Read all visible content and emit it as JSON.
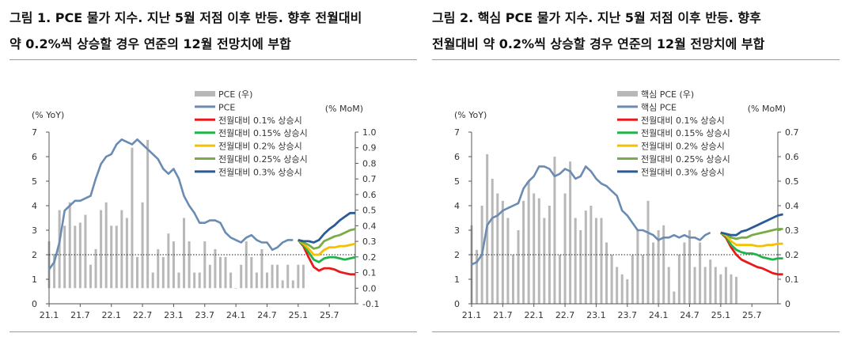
{
  "figures": [
    {
      "title_line1": "그림 1. PCE 물가 지수. 지난 5월 저점 이후 반등. 향후 전월대비",
      "title_line2": "약 0.2%씩 상승할 경우 연준의 12월 전망치에 부합"
    },
    {
      "title_line1": "그림 2. 핵심 PCE 물가 지수. 지난 5월 저점 이후 반등. 향후",
      "title_line2": "전월대비 약 0.2%씩 상승할 경우 연준의 12월 전망치에 부합"
    }
  ],
  "colors": {
    "bar": "#b8b8b8",
    "index_line": "#6a8bb2",
    "s01": "#e8191b",
    "s015": "#22b24c",
    "s02": "#f5c000",
    "s025": "#79ac47",
    "s03": "#2a5b96"
  },
  "chart_data": [
    {
      "type": "bar+line",
      "left_axis_label": "(% YoY)",
      "right_axis_label": "(% MoM)",
      "ylim_left": [
        0,
        7
      ],
      "yticks_left": [
        "0",
        "1",
        "2",
        "3",
        "4",
        "5",
        "6",
        "7"
      ],
      "ylim_right": [
        -0.1,
        1.0
      ],
      "yticks_right": [
        "-0.1",
        "0.0",
        "0.1",
        "0.2",
        "0.3",
        "0.4",
        "0.5",
        "0.6",
        "0.7",
        "0.8",
        "0.9",
        "1.0"
      ],
      "x_tick_labels": [
        "21.1",
        "21.7",
        "22.1",
        "22.7",
        "23.1",
        "23.7",
        "24.1",
        "24.7",
        "25.1",
        "25.7"
      ],
      "reference_line_yoy": 2,
      "legend": [
        {
          "label": "PCE (우)",
          "kind": "bar",
          "color_key": "bar"
        },
        {
          "label": "PCE",
          "kind": "line",
          "color_key": "index_line"
        },
        {
          "label": "전월대비 0.1% 상승시",
          "kind": "line",
          "color_key": "s01"
        },
        {
          "label": "전월대비 0.15% 상승시",
          "kind": "line",
          "color_key": "s015"
        },
        {
          "label": "전월대비 0.2% 상승시",
          "kind": "line",
          "color_key": "s02"
        },
        {
          "label": "전월대비 0.25% 상승시",
          "kind": "line",
          "color_key": "s025"
        },
        {
          "label": "전월대비 0.3% 상승시",
          "kind": "line",
          "color_key": "s03"
        }
      ],
      "bars_mom": [
        0.3,
        0.22,
        0.5,
        0.4,
        0.55,
        0.4,
        0.42,
        0.47,
        0.15,
        0.25,
        0.5,
        0.55,
        0.4,
        0.4,
        0.5,
        0.45,
        0.9,
        0.2,
        0.55,
        0.95,
        0.1,
        0.25,
        0.2,
        0.35,
        0.3,
        0.1,
        0.45,
        0.3,
        0.1,
        0.1,
        0.3,
        0.15,
        0.25,
        0.2,
        0.2,
        0.1,
        0.0,
        0.15,
        0.3,
        0.2,
        0.1,
        0.25,
        0.1,
        0.15,
        0.15,
        0.05,
        0.15,
        0.05,
        0.15,
        0.15
      ],
      "index_yoy": [
        1.4,
        1.7,
        2.5,
        3.8,
        4.0,
        4.2,
        4.2,
        4.3,
        4.4,
        5.1,
        5.7,
        6.0,
        6.1,
        6.5,
        6.7,
        6.6,
        6.5,
        6.7,
        6.5,
        6.3,
        6.1,
        5.9,
        5.5,
        5.3,
        5.5,
        5.1,
        4.4,
        4.0,
        3.7,
        3.3,
        3.3,
        3.4,
        3.4,
        3.3,
        2.9,
        2.7,
        2.6,
        2.5,
        2.7,
        2.8,
        2.6,
        2.5,
        2.5,
        2.2,
        2.3,
        2.5,
        2.6,
        2.6
      ],
      "scenarios": [
        {
          "label": "전월대비 0.1% 상승시",
          "color_key": "s01",
          "values": [
            2.6,
            2.35,
            1.9,
            1.5,
            1.35,
            1.45,
            1.45,
            1.4,
            1.3,
            1.25,
            1.2,
            1.2
          ]
        },
        {
          "label": "전월대비 0.15% 상승시",
          "color_key": "s015",
          "values": [
            2.6,
            2.4,
            2.1,
            1.8,
            1.7,
            1.85,
            1.9,
            1.9,
            1.85,
            1.8,
            1.85,
            1.9
          ]
        },
        {
          "label": "전월대비 0.2% 상승시",
          "color_key": "s02",
          "values": [
            2.6,
            2.45,
            2.25,
            2.0,
            2.0,
            2.2,
            2.3,
            2.3,
            2.35,
            2.35,
            2.4,
            2.45
          ]
        },
        {
          "label": "전월대비 0.25% 상승시",
          "color_key": "s025",
          "values": [
            2.6,
            2.5,
            2.4,
            2.25,
            2.3,
            2.55,
            2.65,
            2.75,
            2.8,
            2.9,
            3.0,
            3.05
          ]
        },
        {
          "label": "전월대비 0.3% 상승시",
          "color_key": "s03",
          "values": [
            2.6,
            2.55,
            2.55,
            2.5,
            2.6,
            2.85,
            3.05,
            3.2,
            3.4,
            3.55,
            3.7,
            3.7
          ]
        }
      ]
    },
    {
      "type": "bar+line",
      "left_axis_label": "(% YoY)",
      "right_axis_label": "(% MoM)",
      "ylim_left": [
        0,
        7
      ],
      "yticks_left": [
        "0",
        "1",
        "2",
        "3",
        "4",
        "5",
        "6",
        "7"
      ],
      "ylim_right": [
        0,
        0.7
      ],
      "yticks_right": [
        "0",
        "0.1",
        "0.2",
        "0.3",
        "0.4",
        "0.5",
        "0.6",
        "0.7"
      ],
      "x_tick_labels": [
        "21.1",
        "21.7",
        "22.1",
        "22.7",
        "23.1",
        "23.7",
        "24.1",
        "24.7",
        "25.1",
        "25.7"
      ],
      "reference_line_yoy": 2,
      "legend": [
        {
          "label": "핵심 PCE (우)",
          "kind": "bar",
          "color_key": "bar"
        },
        {
          "label": "핵심 PCE",
          "kind": "line",
          "color_key": "index_line"
        },
        {
          "label": "전월대비 0.1% 상승시",
          "kind": "line",
          "color_key": "s01"
        },
        {
          "label": "전월대비 0.15% 상승시",
          "kind": "line",
          "color_key": "s015"
        },
        {
          "label": "전월대비 0.2% 상승시",
          "kind": "line",
          "color_key": "s02"
        },
        {
          "label": "전월대비 0.25% 상승시",
          "kind": "line",
          "color_key": "s025"
        },
        {
          "label": "전월대비 0.3% 상승시",
          "kind": "line",
          "color_key": "s03"
        }
      ],
      "bars_mom": [
        0.32,
        0.22,
        0.4,
        0.61,
        0.51,
        0.45,
        0.42,
        0.35,
        0.2,
        0.3,
        0.42,
        0.5,
        0.45,
        0.43,
        0.35,
        0.4,
        0.6,
        0.2,
        0.45,
        0.58,
        0.35,
        0.3,
        0.38,
        0.4,
        0.35,
        0.35,
        0.25,
        0.2,
        0.15,
        0.12,
        0.1,
        0.2,
        0.3,
        0.2,
        0.42,
        0.25,
        0.3,
        0.32,
        0.15,
        0.05,
        0.2,
        0.25,
        0.3,
        0.15,
        0.25,
        0.15,
        0.18,
        0.15,
        0.12,
        0.15,
        0.12,
        0.11
      ],
      "index_yoy": [
        1.6,
        1.7,
        2.0,
        3.2,
        3.5,
        3.6,
        3.8,
        3.9,
        4.0,
        4.1,
        4.7,
        5.0,
        5.2,
        5.6,
        5.6,
        5.5,
        5.2,
        5.3,
        5.5,
        5.4,
        5.1,
        5.2,
        5.6,
        5.4,
        5.1,
        4.9,
        4.8,
        4.6,
        4.4,
        3.8,
        3.6,
        3.3,
        3.0,
        3.0,
        2.9,
        2.8,
        2.6,
        2.7,
        2.7,
        2.8,
        2.7,
        2.8,
        2.7,
        2.7,
        2.6,
        2.8,
        2.9
      ],
      "scenarios": [
        {
          "label": "전월대비 0.1% 상승시",
          "color_key": "s01",
          "values": [
            2.9,
            2.7,
            2.3,
            2.0,
            1.8,
            1.7,
            1.6,
            1.5,
            1.45,
            1.35,
            1.25,
            1.2,
            1.2
          ]
        },
        {
          "label": "전월대비 0.15% 상승시",
          "color_key": "s015",
          "values": [
            2.9,
            2.75,
            2.4,
            2.2,
            2.1,
            2.05,
            2.05,
            2.0,
            1.9,
            1.85,
            1.8,
            1.85,
            1.85
          ]
        },
        {
          "label": "전월대비 0.2% 상승시",
          "color_key": "s02",
          "values": [
            2.9,
            2.8,
            2.55,
            2.4,
            2.4,
            2.4,
            2.4,
            2.35,
            2.35,
            2.4,
            2.4,
            2.45,
            2.45
          ]
        },
        {
          "label": "전월대비 0.25% 상승시",
          "color_key": "s025",
          "values": [
            2.9,
            2.85,
            2.7,
            2.65,
            2.7,
            2.7,
            2.8,
            2.85,
            2.9,
            2.95,
            3.0,
            3.05,
            3.05
          ]
        },
        {
          "label": "전월대비 0.3% 상승시",
          "color_key": "s03",
          "values": [
            2.9,
            2.85,
            2.8,
            2.8,
            2.95,
            3.0,
            3.1,
            3.2,
            3.3,
            3.4,
            3.5,
            3.6,
            3.65
          ]
        }
      ]
    }
  ]
}
